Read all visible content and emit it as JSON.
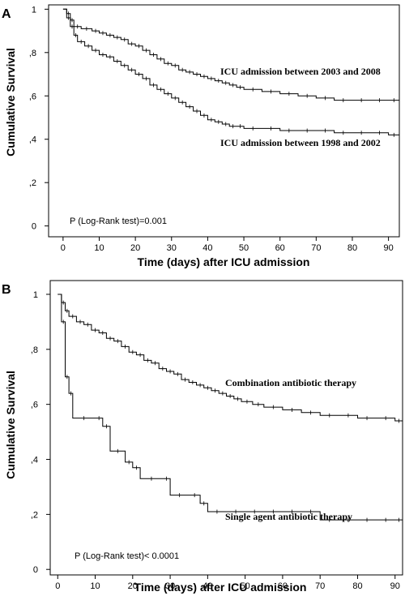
{
  "chart_data": [
    {
      "type": "line",
      "panel_label": "A",
      "ylabel": "Cumulative Survival",
      "xlabel": "Time (days) after ICU admission",
      "xlim": [
        -4,
        93
      ],
      "ylim": [
        -0.05,
        1.02
      ],
      "x_ticks": [
        "0",
        "10",
        "20",
        "30",
        "40",
        "50",
        "60",
        "70",
        "80",
        "90"
      ],
      "x_tick_values": [
        0,
        10,
        20,
        30,
        40,
        50,
        60,
        70,
        80,
        90
      ],
      "y_ticks": [
        "0",
        ",2",
        ",4",
        ",6",
        ",8",
        "1"
      ],
      "y_tick_values": [
        0,
        0.2,
        0.4,
        0.6,
        0.8,
        1
      ],
      "p_value_text": "P (Log-Rank test)=0.001",
      "series": [
        {
          "name": "ICU admission between 2003 and 2008",
          "x": [
            0,
            1,
            2,
            3,
            5,
            8,
            10,
            12,
            14,
            16,
            18,
            20,
            22,
            24,
            26,
            28,
            30,
            32,
            34,
            36,
            38,
            40,
            42,
            44,
            46,
            48,
            50,
            55,
            60,
            65,
            70,
            75,
            80,
            85,
            90,
            93
          ],
          "y": [
            1.0,
            0.98,
            0.95,
            0.92,
            0.91,
            0.9,
            0.89,
            0.88,
            0.87,
            0.86,
            0.84,
            0.83,
            0.81,
            0.79,
            0.77,
            0.75,
            0.74,
            0.72,
            0.71,
            0.7,
            0.69,
            0.68,
            0.67,
            0.66,
            0.65,
            0.64,
            0.63,
            0.62,
            0.61,
            0.6,
            0.59,
            0.58,
            0.58,
            0.58,
            0.58,
            0.57
          ]
        },
        {
          "name": "ICU admission between 1998 and 2002",
          "x": [
            0,
            1,
            2,
            3,
            4,
            6,
            8,
            10,
            12,
            14,
            16,
            18,
            20,
            22,
            24,
            26,
            28,
            30,
            32,
            34,
            36,
            38,
            40,
            42,
            44,
            46,
            48,
            50,
            55,
            60,
            65,
            70,
            75,
            80,
            85,
            90,
            93
          ],
          "y": [
            1.0,
            0.96,
            0.92,
            0.88,
            0.85,
            0.83,
            0.81,
            0.79,
            0.78,
            0.76,
            0.74,
            0.72,
            0.7,
            0.68,
            0.65,
            0.63,
            0.61,
            0.59,
            0.57,
            0.55,
            0.53,
            0.51,
            0.49,
            0.48,
            0.47,
            0.46,
            0.46,
            0.45,
            0.45,
            0.44,
            0.44,
            0.44,
            0.43,
            0.43,
            0.43,
            0.42,
            0.42
          ]
        }
      ]
    },
    {
      "type": "line",
      "panel_label": "B",
      "ylabel": "Cumulative Survival",
      "xlabel": "Time (days) after ICU admission",
      "xlim": [
        -2,
        92
      ],
      "ylim": [
        -0.02,
        1.05
      ],
      "x_ticks": [
        "0",
        "10",
        "20",
        "30",
        "40",
        "50",
        "60",
        "70",
        "80",
        "90"
      ],
      "x_tick_values": [
        0,
        10,
        20,
        30,
        40,
        50,
        60,
        70,
        80,
        90
      ],
      "y_ticks": [
        "0",
        ",2",
        ",4",
        ",6",
        ",8",
        "1"
      ],
      "y_tick_values": [
        0,
        0.2,
        0.4,
        0.6,
        0.8,
        1
      ],
      "p_value_text": "P (Log-Rank test)< 0.0001",
      "series": [
        {
          "name": "Combination antibiotic therapy",
          "x": [
            0,
            1,
            2,
            3,
            5,
            7,
            9,
            11,
            13,
            15,
            17,
            19,
            21,
            23,
            25,
            27,
            29,
            31,
            33,
            35,
            37,
            39,
            41,
            43,
            45,
            47,
            49,
            52,
            55,
            60,
            65,
            70,
            75,
            80,
            85,
            90,
            92
          ],
          "y": [
            1.0,
            0.97,
            0.94,
            0.92,
            0.9,
            0.89,
            0.87,
            0.86,
            0.84,
            0.83,
            0.81,
            0.79,
            0.78,
            0.76,
            0.75,
            0.73,
            0.72,
            0.71,
            0.69,
            0.68,
            0.67,
            0.66,
            0.65,
            0.64,
            0.63,
            0.62,
            0.61,
            0.6,
            0.59,
            0.58,
            0.57,
            0.56,
            0.56,
            0.55,
            0.55,
            0.54,
            0.54
          ]
        },
        {
          "name": "Single agent antibiotic therapy",
          "x": [
            0,
            1,
            2,
            3,
            4,
            10,
            12,
            14,
            18,
            20,
            22,
            28,
            30,
            35,
            38,
            40,
            45,
            50,
            55,
            60,
            65,
            70,
            75,
            80,
            85,
            90,
            92
          ],
          "y": [
            1.0,
            0.9,
            0.7,
            0.64,
            0.55,
            0.55,
            0.52,
            0.43,
            0.39,
            0.37,
            0.33,
            0.33,
            0.27,
            0.27,
            0.24,
            0.21,
            0.21,
            0.21,
            0.21,
            0.21,
            0.21,
            0.18,
            0.18,
            0.18,
            0.18,
            0.18,
            0.18
          ]
        }
      ]
    }
  ]
}
